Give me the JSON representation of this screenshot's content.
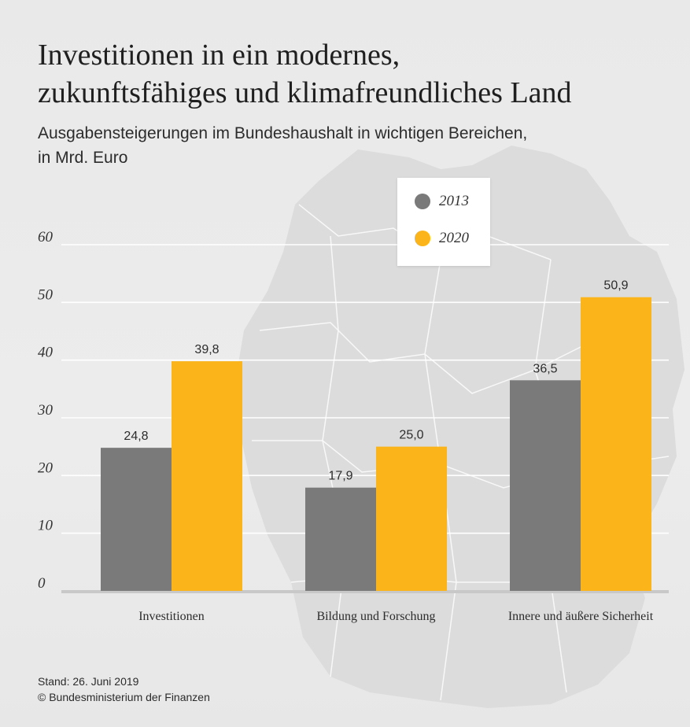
{
  "header": {
    "title_line1": "Investitionen in ein modernes,",
    "title_line2": "zukunftsfähiges und klimafreundliches Land",
    "subtitle_line1": "Ausgabensteigerungen im Bundeshaushalt in wichtigen Bereichen,",
    "subtitle_line2": "in Mrd. Euro"
  },
  "footer": {
    "stand": "Stand: 26. Juni 2019",
    "copyright": "© Bundesministerium der Finanzen"
  },
  "colors": {
    "series_2013": "#7a7a7a",
    "series_2020": "#fbb41a",
    "gridline": "#ffffff",
    "text": "#2c2c2c"
  },
  "chart_data": {
    "type": "bar",
    "title": "Investitionen in ein modernes, zukunftsfähiges und klimafreundliches Land",
    "subtitle": "Ausgabensteigerungen im Bundeshaushalt in wichtigen Bereichen, in Mrd. Euro",
    "categories": [
      "Investitionen",
      "Bildung und Forschung",
      "Innere und äußere Sicherheit"
    ],
    "series": [
      {
        "name": "2013",
        "values": [
          24.8,
          17.9,
          36.5
        ],
        "labels": [
          "24,8",
          "17,9",
          "36,5"
        ]
      },
      {
        "name": "2020",
        "values": [
          39.8,
          25.0,
          50.9
        ],
        "labels": [
          "39,8",
          "25,0",
          "50,9"
        ]
      }
    ],
    "ylim": [
      0,
      60
    ],
    "yticks": [
      0,
      10,
      20,
      30,
      40,
      50,
      60
    ],
    "xlabel": "",
    "ylabel": "",
    "grid": true,
    "legend_position": "top-center"
  }
}
